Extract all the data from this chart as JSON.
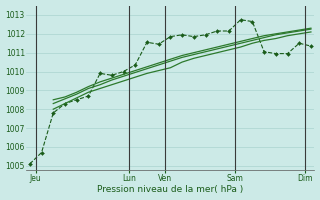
{
  "xlabel": "Pression niveau de la mer( hPa )",
  "ylim": [
    1004.8,
    1013.5
  ],
  "yticks": [
    1005,
    1006,
    1007,
    1008,
    1009,
    1010,
    1011,
    1012,
    1013
  ],
  "background_color": "#cceae7",
  "grid_color": "#aad4d0",
  "line_color_dark": "#1a5c1a",
  "line_color_med": "#2d7a2d",
  "x_day_labels": [
    "Jeu",
    "Lun",
    "Ven",
    "Sam",
    "Dim"
  ],
  "x_day_positions": [
    0.5,
    8.5,
    11.5,
    17.5,
    23.5
  ],
  "n_points": 25,
  "series1_x": [
    0,
    1,
    2,
    3,
    4,
    5,
    6,
    7,
    8,
    9,
    10,
    11,
    12,
    13,
    14,
    15,
    16,
    17,
    18,
    19,
    20,
    21,
    22,
    23,
    24
  ],
  "series1_y": [
    1005.1,
    1005.7,
    1007.8,
    1008.3,
    1008.5,
    1008.7,
    1009.9,
    1009.8,
    1010.0,
    1010.35,
    1011.55,
    1011.45,
    1011.85,
    1011.95,
    1011.85,
    1011.95,
    1012.15,
    1012.15,
    1012.75,
    1012.65,
    1011.05,
    1010.95,
    1010.95,
    1011.5,
    1011.35
  ],
  "series2_x": [
    2,
    3,
    4,
    5,
    6,
    7,
    8,
    9,
    10,
    11,
    12,
    13,
    14,
    15,
    16,
    17,
    18,
    19,
    20,
    21,
    22,
    23,
    24
  ],
  "series2_y": [
    1008.0,
    1008.3,
    1008.6,
    1008.9,
    1009.1,
    1009.3,
    1009.5,
    1009.7,
    1009.9,
    1010.05,
    1010.2,
    1010.5,
    1010.7,
    1010.85,
    1011.0,
    1011.15,
    1011.3,
    1011.5,
    1011.65,
    1011.75,
    1011.9,
    1012.0,
    1012.1
  ],
  "series3_x": [
    2,
    3,
    4,
    5,
    6,
    7,
    8,
    9,
    10,
    11,
    12,
    13,
    14,
    15,
    16,
    17,
    18,
    19,
    20,
    21,
    22,
    23,
    24
  ],
  "series3_y": [
    1008.3,
    1008.55,
    1008.8,
    1009.1,
    1009.3,
    1009.55,
    1009.75,
    1009.95,
    1010.15,
    1010.35,
    1010.55,
    1010.75,
    1010.9,
    1011.05,
    1011.2,
    1011.35,
    1011.5,
    1011.65,
    1011.8,
    1011.95,
    1012.05,
    1012.15,
    1012.25
  ],
  "series4_x": [
    2,
    3,
    4,
    5,
    6,
    7,
    8,
    9,
    10,
    11,
    12,
    13,
    14,
    15,
    16,
    17,
    18,
    19,
    20,
    21,
    22,
    23,
    24
  ],
  "series4_y": [
    1008.5,
    1008.65,
    1008.9,
    1009.2,
    1009.45,
    1009.65,
    1009.85,
    1010.05,
    1010.25,
    1010.45,
    1010.65,
    1010.85,
    1011.0,
    1011.15,
    1011.3,
    1011.45,
    1011.6,
    1011.75,
    1011.9,
    1012.0,
    1012.1,
    1012.2,
    1012.3
  ]
}
